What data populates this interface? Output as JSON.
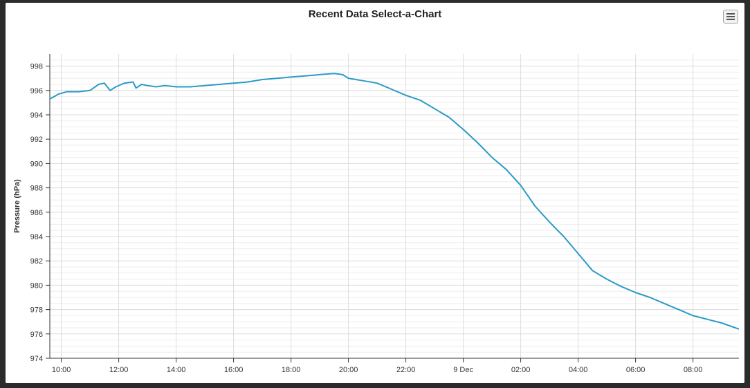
{
  "chart_data": {
    "type": "line",
    "title": "Recent Data Select-a-Chart",
    "ylabel": "Pressure (hPa)",
    "xlabel": "",
    "ylim": [
      974,
      999
    ],
    "yticks": [
      974,
      976,
      978,
      980,
      982,
      984,
      986,
      988,
      990,
      992,
      994,
      996,
      998
    ],
    "xticks": [
      "10:00",
      "12:00",
      "14:00",
      "16:00",
      "18:00",
      "20:00",
      "22:00",
      "9 Dec",
      "02:00",
      "04:00",
      "06:00",
      "08:00"
    ],
    "x_hours_range": [
      9.6,
      33.6
    ],
    "grid": true,
    "color": "#2a9ac7",
    "series": [
      {
        "x": [
          9.6,
          9.9,
          10.2,
          10.6,
          11.0,
          11.3,
          11.5,
          11.7,
          11.9,
          12.2,
          12.5,
          12.6,
          12.8,
          13.0,
          13.3,
          13.6,
          14.0,
          14.5,
          15.0,
          15.5,
          16.0,
          16.5,
          17.0,
          17.5,
          18.0,
          18.5,
          19.0,
          19.5,
          19.8,
          20.0,
          20.5,
          21.0,
          21.5,
          22.0,
          22.5,
          23.0,
          23.5,
          24.0,
          24.5,
          25.0,
          25.5,
          26.0,
          26.5,
          27.0,
          27.5,
          28.0,
          28.5,
          29.0,
          29.5,
          30.0,
          30.5,
          31.0,
          31.5,
          32.0,
          32.5,
          33.0,
          33.6
        ],
        "y": [
          995.3,
          995.7,
          995.9,
          995.9,
          996.0,
          996.5,
          996.6,
          996.0,
          996.3,
          996.6,
          996.7,
          996.2,
          996.5,
          996.4,
          996.3,
          996.4,
          996.3,
          996.3,
          996.4,
          996.5,
          996.6,
          996.7,
          996.9,
          997.0,
          997.1,
          997.2,
          997.3,
          997.4,
          997.3,
          997.0,
          996.8,
          996.6,
          996.1,
          995.6,
          995.2,
          994.5,
          993.8,
          992.8,
          991.7,
          990.5,
          989.5,
          988.2,
          986.5,
          985.2,
          984.0,
          982.6,
          981.2,
          980.5,
          979.9,
          979.4,
          979.0,
          978.5,
          978.0,
          977.5,
          977.2,
          976.9,
          976.4
        ]
      }
    ]
  }
}
